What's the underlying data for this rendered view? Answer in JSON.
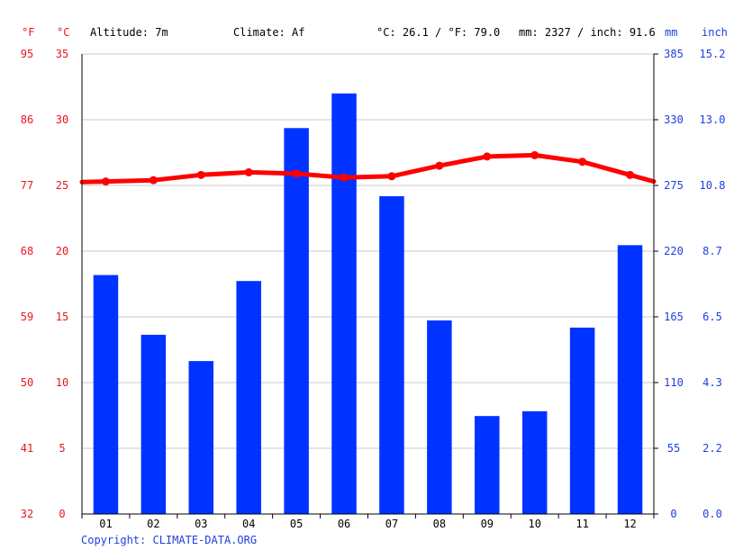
{
  "header": {
    "unit_f": "°F",
    "unit_c": "°C",
    "altitude": "Altitude: 7m",
    "climate": "Climate: Af",
    "avg_temp": "°C: 26.1 / °F: 79.0",
    "precip_total": "mm: 2327 / inch: 91.6",
    "unit_mm": "mm",
    "unit_inch": "inch"
  },
  "copyright": "Copyright: CLIMATE-DATA.ORG",
  "colors": {
    "temperature": "#ff0000",
    "precipitation": "#0033ff",
    "left_axis_text": "#e8171d",
    "right_axis_text": "#1f3fe0",
    "grid": "#c8c8c8",
    "axis": "#000000"
  },
  "chart_data": {
    "type": "bar",
    "categories": [
      "01",
      "02",
      "03",
      "04",
      "05",
      "06",
      "07",
      "08",
      "09",
      "10",
      "11",
      "12"
    ],
    "series": [
      {
        "type": "bar",
        "axis": "mm",
        "values": [
          200,
          150,
          128,
          195,
          323,
          352,
          266,
          162,
          82,
          86,
          156,
          225
        ]
      },
      {
        "type": "line",
        "axis": "°C",
        "values": [
          25.3,
          25.4,
          25.8,
          26.0,
          25.9,
          25.6,
          25.7,
          26.5,
          27.2,
          27.3,
          26.8,
          25.8
        ]
      }
    ],
    "axes": {
      "celsius": {
        "ticks": [
          "35",
          "30",
          "25",
          "20",
          "15",
          "10",
          "5",
          "0"
        ],
        "ylim": [
          0,
          35
        ]
      },
      "fahrenheit": {
        "ticks": [
          "95",
          "86",
          "77",
          "68",
          "59",
          "50",
          "41",
          "32"
        ],
        "ylim": [
          32,
          95
        ]
      },
      "mm": {
        "ticks": [
          "385",
          "330",
          "275",
          "220",
          "165",
          "110",
          "55",
          "0"
        ],
        "ylim": [
          0,
          385
        ]
      },
      "inch": {
        "ticks": [
          "15.2",
          "13.0",
          "10.8",
          "8.7",
          "6.5",
          "4.3",
          "2.2",
          "0.0"
        ],
        "ylim": [
          0,
          15.2
        ]
      }
    },
    "grid": true
  }
}
